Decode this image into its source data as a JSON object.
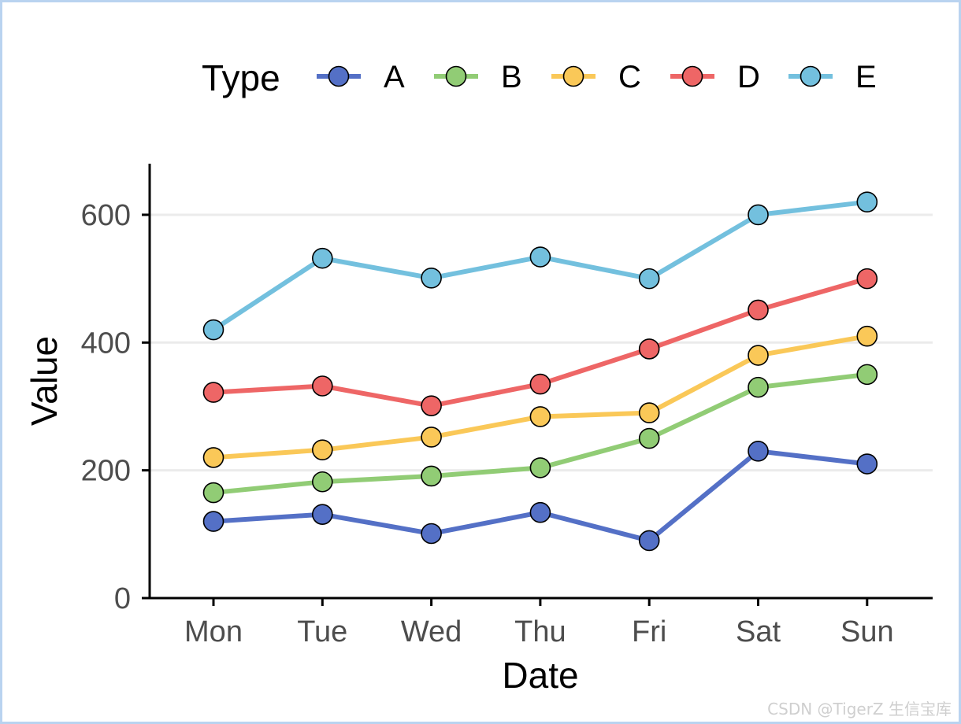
{
  "chart_data": {
    "type": "line",
    "title": "",
    "xlabel": "Date",
    "ylabel": "Value",
    "x": [
      "Mon",
      "Tue",
      "Wed",
      "Thu",
      "Fri",
      "Sat",
      "Sun"
    ],
    "ylim": [
      0,
      680
    ],
    "yticks": [
      0,
      200,
      400,
      600
    ],
    "grid": "horizontal",
    "legend": {
      "title": "Type",
      "position": "top"
    },
    "series": [
      {
        "name": "A",
        "color": "#5470c6",
        "values": [
          120,
          131,
          101,
          134,
          90,
          230,
          210
        ]
      },
      {
        "name": "B",
        "color": "#91cc75",
        "values": [
          165,
          182,
          191,
          204,
          250,
          330,
          350
        ]
      },
      {
        "name": "C",
        "color": "#fac858",
        "values": [
          220,
          232,
          252,
          284,
          290,
          380,
          410
        ]
      },
      {
        "name": "D",
        "color": "#ee6666",
        "values": [
          322,
          332,
          301,
          335,
          390,
          451,
          500
        ]
      },
      {
        "name": "E",
        "color": "#73c0de",
        "values": [
          420,
          532,
          501,
          534,
          500,
          600,
          620
        ]
      }
    ]
  },
  "watermark": "CSDN @TigerZ 生信宝库"
}
